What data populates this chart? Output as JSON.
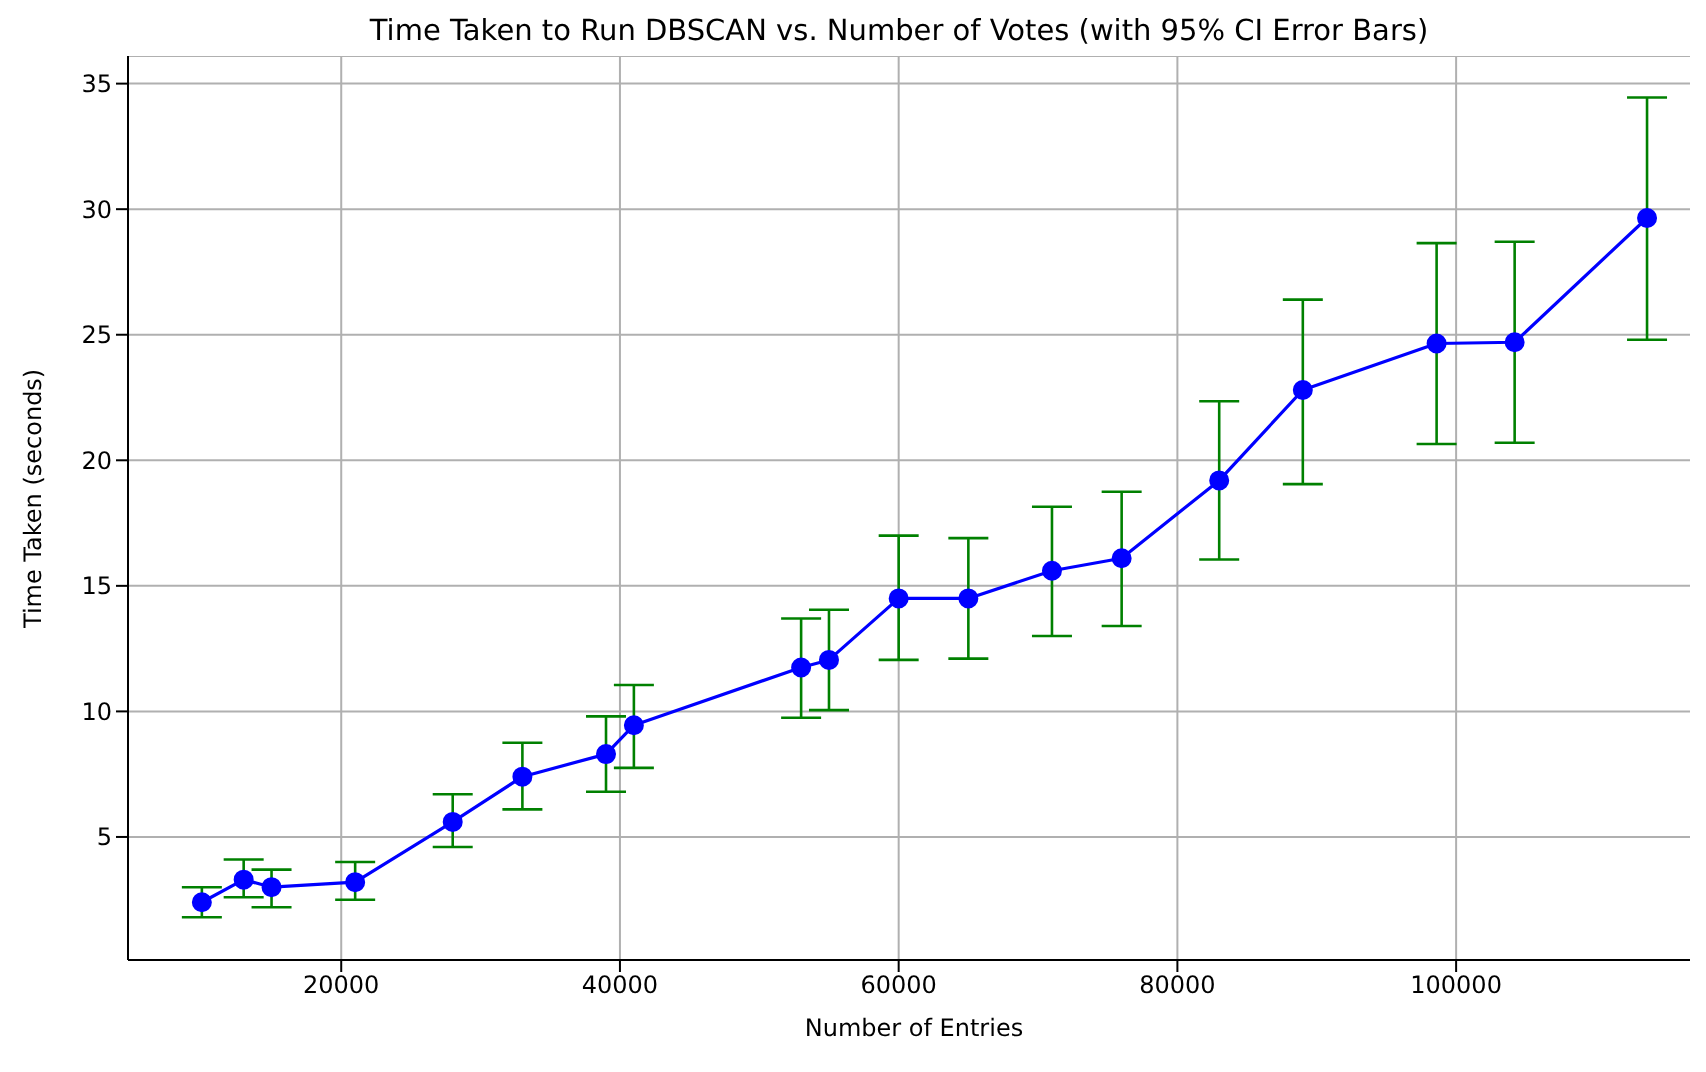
{
  "chart_data": {
    "type": "line",
    "title": "Time Taken to Run DBSCAN vs. Number of Votes (with 95% CI Error Bars)",
    "xlabel": "Number of Entries",
    "ylabel": "Time Taken (seconds)",
    "x": [
      10000,
      13000,
      15000,
      21000,
      28000,
      33000,
      39000,
      41000,
      53000,
      55000,
      60000,
      65000,
      71000,
      76000,
      83000,
      89000,
      98600,
      104200,
      113700
    ],
    "series": [
      {
        "color": "#0000ff",
        "values": [
          2.4,
          3.3,
          3.0,
          3.2,
          5.6,
          7.4,
          8.3,
          9.45,
          11.75,
          12.05,
          14.5,
          14.5,
          15.6,
          16.1,
          19.2,
          22.8,
          24.65,
          24.7,
          29.65
        ],
        "errors": [
          [
            1.8,
            3.0
          ],
          [
            2.6,
            4.1
          ],
          [
            2.2,
            3.7
          ],
          [
            2.5,
            4.0
          ],
          [
            4.6,
            6.7
          ],
          [
            6.1,
            8.75
          ],
          [
            6.8,
            9.8
          ],
          [
            7.75,
            11.05
          ],
          [
            9.75,
            13.7
          ],
          [
            10.05,
            14.05
          ],
          [
            12.05,
            17.0
          ],
          [
            12.1,
            16.9
          ],
          [
            13.0,
            18.15
          ],
          [
            13.4,
            18.75
          ],
          [
            16.05,
            22.35
          ],
          [
            19.05,
            26.4
          ],
          [
            20.65,
            28.65
          ],
          [
            20.7,
            28.7
          ],
          [
            24.8,
            34.45
          ]
        ]
      }
    ],
    "xlim": [
      4700,
      117500
    ],
    "ylim": [
      0.1,
      36.1
    ],
    "xticks": [
      20000,
      40000,
      60000,
      80000,
      100000
    ],
    "yticks": [
      5,
      10,
      15,
      20,
      25,
      30,
      35
    ],
    "grid": true,
    "marker": "circle",
    "line_style": "solid"
  }
}
